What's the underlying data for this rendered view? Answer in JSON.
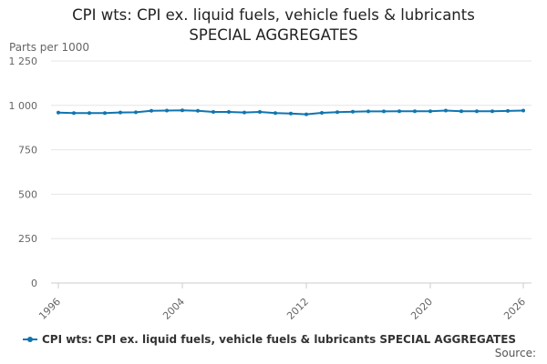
{
  "title": {
    "line1": "CPI wts: CPI ex. liquid fuels, vehicle fuels & lubricants",
    "line2": "SPECIAL AGGREGATES"
  },
  "source_label": "Source:",
  "colors": {
    "series": "#0f75b0",
    "grid": "#e6e6e6",
    "axis_text": "#666666"
  },
  "chart_data": {
    "type": "line",
    "title": "CPI wts: CPI ex. liquid fuels, vehicle fuels & lubricants SPECIAL AGGREGATES",
    "ylabel": "Parts per 1000",
    "xlabel": "",
    "ylim": [
      0,
      1250
    ],
    "xlim": [
      1996,
      2026
    ],
    "yticks": [
      0,
      250,
      500,
      750,
      1000,
      1250
    ],
    "ytick_labels": [
      "0",
      "250",
      "500",
      "750",
      "1 000",
      "1 250"
    ],
    "xticks": [
      1996,
      2004,
      2012,
      2020,
      2026
    ],
    "xtick_labels": [
      "1996",
      "2004",
      "2012",
      "2020",
      "2026"
    ],
    "grid": true,
    "legend_position": "bottom",
    "series": [
      {
        "name": "CPI wts: CPI ex. liquid fuels, vehicle fuels & lubricants SPECIAL AGGREGATES",
        "x": [
          1996,
          1997,
          1998,
          1999,
          2000,
          2001,
          2002,
          2003,
          2004,
          2005,
          2006,
          2007,
          2008,
          2009,
          2010,
          2011,
          2012,
          2013,
          2014,
          2015,
          2016,
          2017,
          2018,
          2019,
          2020,
          2021,
          2022,
          2023,
          2024,
          2025,
          2026
        ],
        "values": [
          959,
          957,
          957,
          957,
          960,
          961,
          970,
          971,
          972,
          970,
          963,
          963,
          960,
          963,
          957,
          954,
          950,
          958,
          962,
          964,
          966,
          966,
          967,
          967,
          967,
          971,
          967,
          967,
          967,
          969,
          971
        ]
      }
    ]
  }
}
